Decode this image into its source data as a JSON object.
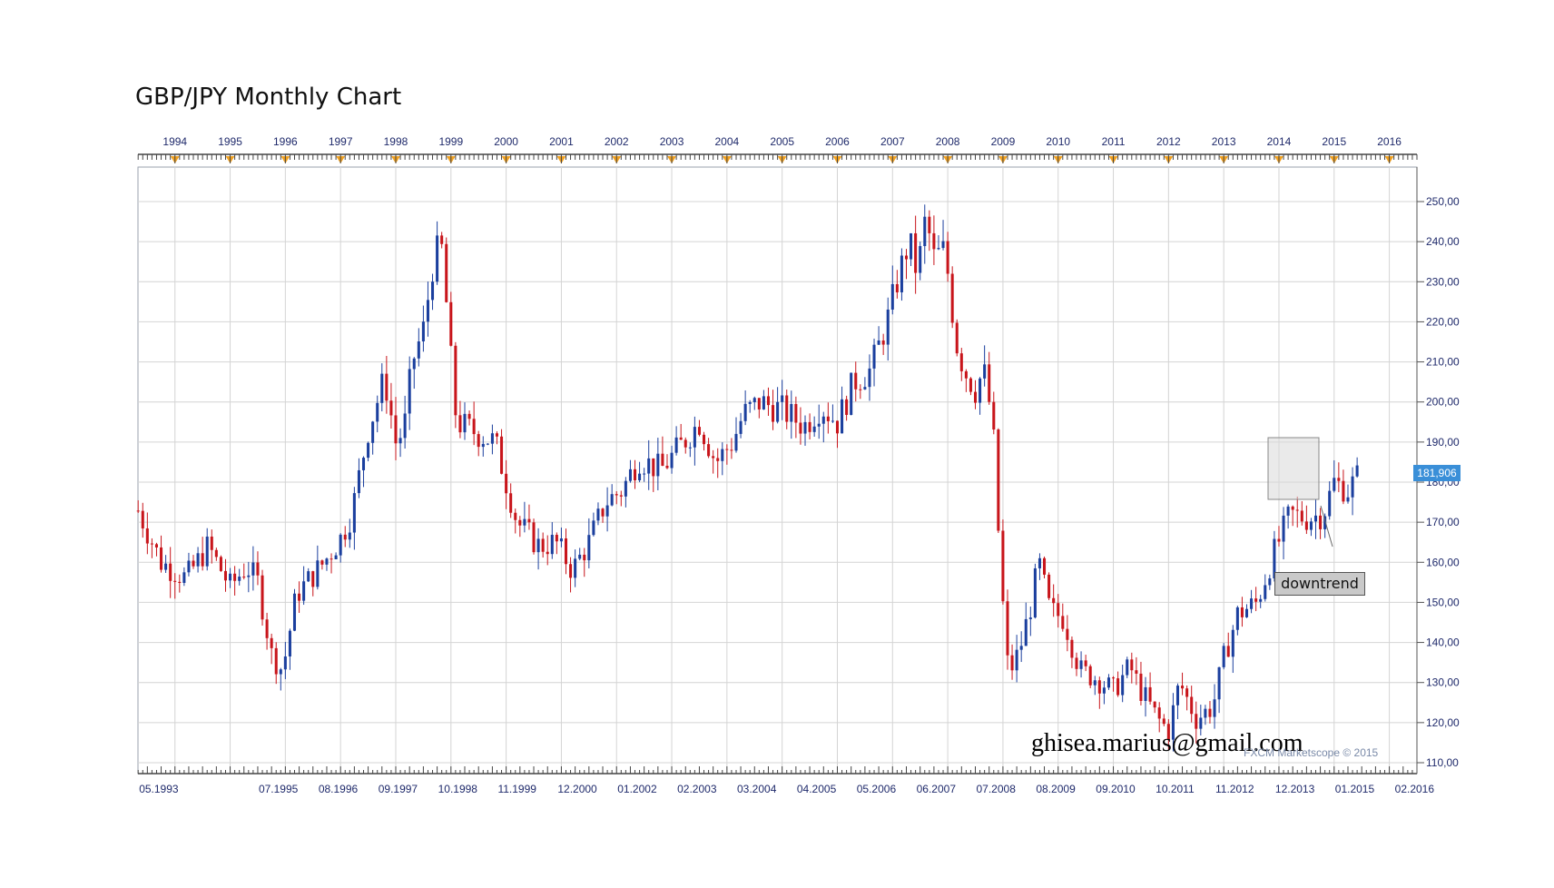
{
  "chart_data": {
    "type": "candlestick",
    "title": "GBP/JPY Monthly Chart",
    "xlabel": "",
    "ylabel": "",
    "ylim": [
      110,
      255
    ],
    "xlim": [
      1993.33,
      2016.5
    ],
    "grid": true,
    "year_ticks": [
      "1994",
      "1995",
      "1996",
      "1997",
      "1998",
      "1999",
      "2000",
      "2001",
      "2002",
      "2003",
      "2004",
      "2005",
      "2006",
      "2007",
      "2008",
      "2009",
      "2010",
      "2011",
      "2012",
      "2013",
      "2014",
      "2015",
      "2016"
    ],
    "date_ticks": [
      "05.1993",
      "07.1995",
      "08.1996",
      "09.1997",
      "10.1998",
      "11.1999",
      "12.2000",
      "01.2002",
      "02.2003",
      "03.2004",
      "04.2005",
      "05.2006",
      "06.2007",
      "07.2008",
      "08.2009",
      "09.2010",
      "10.2011",
      "11.2012",
      "12.2013",
      "01.2015",
      "02.2016"
    ],
    "y_ticks": [
      "110,00",
      "120,00",
      "130,00",
      "140,00",
      "150,00",
      "160,00",
      "170,00",
      "180,00",
      "190,00",
      "200,00",
      "210,00",
      "220,00",
      "230,00",
      "240,00",
      "250,00"
    ],
    "last_price": "181,906",
    "annotation": "downtrend",
    "colors": {
      "up": "#1b3f9e",
      "down": "#c8151b",
      "grid": "#d4d4d4",
      "label": "#1f2a6b",
      "price_badge": "#3a8fd8"
    },
    "anchors": [
      [
        1993.33,
        173
      ],
      [
        1993.75,
        160
      ],
      [
        1994.2,
        156
      ],
      [
        1994.6,
        164
      ],
      [
        1995.0,
        154
      ],
      [
        1995.3,
        159
      ],
      [
        1995.5,
        155
      ],
      [
        1995.75,
        137
      ],
      [
        1995.95,
        133
      ],
      [
        1996.2,
        152
      ],
      [
        1996.7,
        160
      ],
      [
        1997.0,
        166
      ],
      [
        1997.2,
        172
      ],
      [
        1997.5,
        193
      ],
      [
        1997.8,
        206
      ],
      [
        1998.0,
        190
      ],
      [
        1998.15,
        193
      ],
      [
        1998.3,
        210
      ],
      [
        1998.5,
        218
      ],
      [
        1998.7,
        237
      ],
      [
        1998.85,
        238
      ],
      [
        1998.95,
        218
      ],
      [
        1999.1,
        195
      ],
      [
        1999.5,
        192
      ],
      [
        1999.8,
        190
      ],
      [
        2000.2,
        170
      ],
      [
        2000.6,
        164
      ],
      [
        2000.9,
        165
      ],
      [
        2001.2,
        158
      ],
      [
        2001.5,
        165
      ],
      [
        2001.8,
        175
      ],
      [
        2002.1,
        178
      ],
      [
        2002.4,
        186
      ],
      [
        2002.8,
        183
      ],
      [
        2003.1,
        188
      ],
      [
        2003.5,
        195
      ],
      [
        2003.8,
        185
      ],
      [
        2004.1,
        190
      ],
      [
        2004.3,
        197
      ],
      [
        2004.6,
        200
      ],
      [
        2005.0,
        198
      ],
      [
        2005.4,
        194
      ],
      [
        2005.7,
        199
      ],
      [
        2006.0,
        195
      ],
      [
        2006.3,
        205
      ],
      [
        2006.6,
        208
      ],
      [
        2006.9,
        220
      ],
      [
        2007.1,
        231
      ],
      [
        2007.3,
        240
      ],
      [
        2007.45,
        232
      ],
      [
        2007.6,
        246
      ],
      [
        2007.75,
        236
      ],
      [
        2007.95,
        238
      ],
      [
        2008.15,
        215
      ],
      [
        2008.3,
        208
      ],
      [
        2008.5,
        203
      ],
      [
        2008.65,
        208
      ],
      [
        2008.75,
        200
      ],
      [
        2008.85,
        188
      ],
      [
        2008.95,
        158
      ],
      [
        2009.1,
        132
      ],
      [
        2009.3,
        138
      ],
      [
        2009.5,
        149
      ],
      [
        2009.65,
        160
      ],
      [
        2009.85,
        148
      ],
      [
        2010.1,
        146
      ],
      [
        2010.4,
        133
      ],
      [
        2010.7,
        131
      ],
      [
        2011.0,
        128
      ],
      [
        2011.3,
        134
      ],
      [
        2011.5,
        128
      ],
      [
        2011.8,
        121
      ],
      [
        2012.0,
        118
      ],
      [
        2012.2,
        130
      ],
      [
        2012.5,
        121
      ],
      [
        2012.8,
        124
      ],
      [
        2013.0,
        136
      ],
      [
        2013.25,
        147
      ],
      [
        2013.6,
        150
      ],
      [
        2013.9,
        162
      ],
      [
        2014.2,
        172
      ],
      [
        2014.5,
        171
      ],
      [
        2014.8,
        172
      ],
      [
        2015.0,
        180
      ],
      [
        2015.25,
        178
      ],
      [
        2015.45,
        182
      ]
    ]
  }
}
